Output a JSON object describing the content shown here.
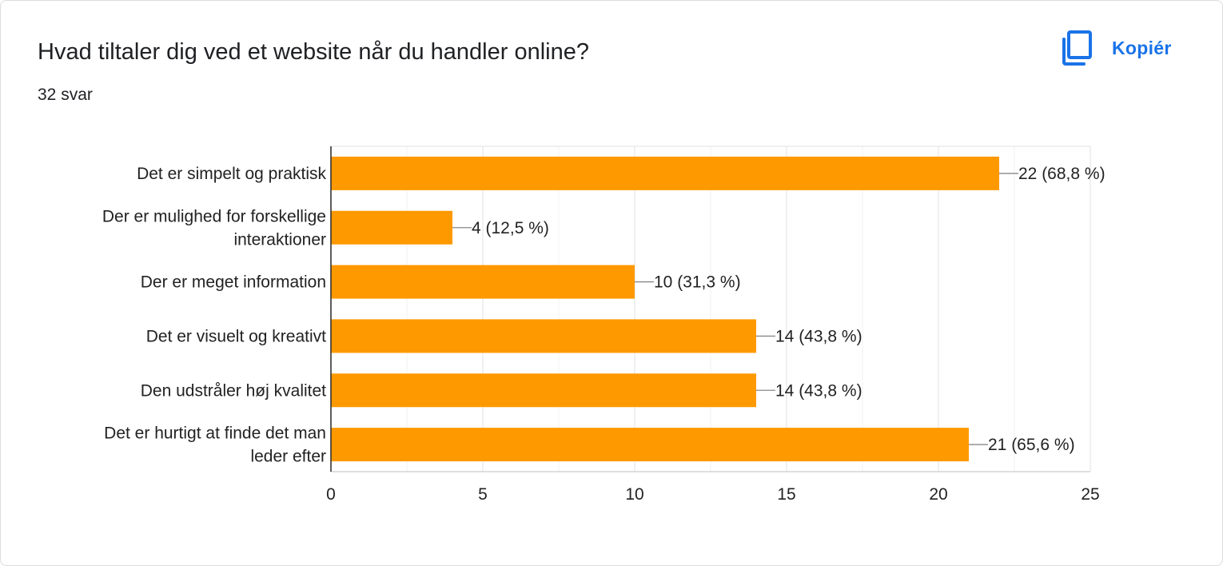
{
  "question": {
    "title": "Hvad tiltaler dig ved et website når du handler online?",
    "response_count": "32 svar"
  },
  "toolbar": {
    "copy_label": "Kopiér",
    "copy_icon": "copy-icon"
  },
  "colors": {
    "bar": "#ff9900",
    "accent": "#1a73e8",
    "grid": "#e6e6e6",
    "axis": "#333333",
    "text": "#222222"
  },
  "chart_data": {
    "type": "bar",
    "orientation": "horizontal",
    "categories": [
      [
        "Det er simpelt og praktisk"
      ],
      [
        "Der er mulighed for forskellige",
        "interaktioner"
      ],
      [
        "Der er meget information"
      ],
      [
        "Det er visuelt og kreativt"
      ],
      [
        "Den udstråler høj kvalitet"
      ],
      [
        "Det er hurtigt at finde det man",
        "leder efter"
      ]
    ],
    "values": [
      22,
      4,
      10,
      14,
      14,
      21
    ],
    "data_labels": [
      "22 (68,8 %)",
      "4 (12,5 %)",
      "10 (31,3 %)",
      "14 (43,8 %)",
      "14 (43,8 %)",
      "21 (65,6 %)"
    ],
    "xlim": [
      0,
      25
    ],
    "xticks": [
      0,
      5,
      10,
      15,
      20,
      25
    ],
    "minor_gridlines": true,
    "grid": true,
    "legend": "none"
  }
}
